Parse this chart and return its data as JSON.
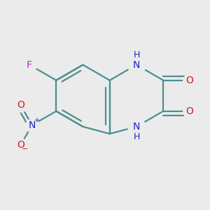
{
  "background_color": "#ebebeb",
  "bond_color": "#4a9090",
  "bond_width": 1.6,
  "atom_colors": {
    "C": "#4a9090",
    "N": "#2020cc",
    "O": "#cc2020",
    "F": "#cc20cc",
    "H": "#4a9090"
  },
  "font_size": 10,
  "fig_size": [
    3.0,
    3.0
  ],
  "dpi": 100
}
